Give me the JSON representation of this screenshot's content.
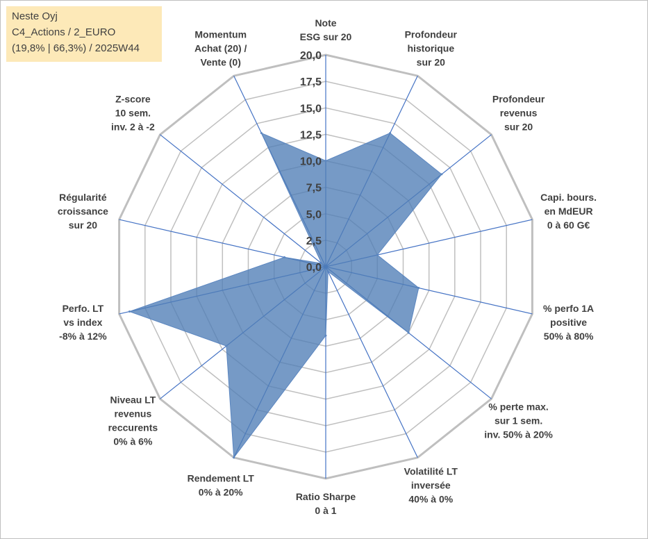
{
  "info": {
    "name": "Neste Oyj",
    "category": "C4_Actions / 2_EURO",
    "stats": "(19,8% | 66,3%) / 2025W44"
  },
  "colors": {
    "grid": "#bfbfbf",
    "axis": "#4472c4",
    "fill": "#4f7db6",
    "edge": "#5b86c0",
    "info_bg": "#fde9b8",
    "text": "#404040"
  },
  "chart_data": {
    "type": "radar",
    "rmin": 0,
    "rmax": 20,
    "tick_step": 2.5,
    "tick_labels": [
      "0,0",
      "2,5",
      "5,0",
      "7,5",
      "10,0",
      "12,5",
      "15,0",
      "17,5",
      "20,0"
    ],
    "axes": [
      {
        "lines": [
          "Note",
          "ESG sur 20"
        ],
        "value": 10.0
      },
      {
        "lines": [
          "Profondeur",
          "historique",
          "sur 20"
        ],
        "value": 14.0
      },
      {
        "lines": [
          "Profondeur",
          "revenus",
          "sur 20"
        ],
        "value": 14.0
      },
      {
        "lines": [
          "Capi. bours.",
          "en MdEUR",
          "0 à 60 G€"
        ],
        "value": 5.0
      },
      {
        "lines": [
          "% perfo 1A",
          "positive",
          "50% à 80%"
        ],
        "value": 9.0
      },
      {
        "lines": [
          "% perte max.",
          "sur 1 sem.",
          "inv. 50% à 20%"
        ],
        "value": 10.0
      },
      {
        "lines": [
          "Volatilité LT",
          "inversée",
          "40% à 0%"
        ],
        "value": 0.5
      },
      {
        "lines": [
          "Ratio Sharpe",
          "0 à 1"
        ],
        "value": 6.5
      },
      {
        "lines": [
          "Rendement LT",
          "0% à 20%"
        ],
        "value": 20.0
      },
      {
        "lines": [
          "Niveau LT",
          "revenus",
          "reccurents",
          "0% à 6%"
        ],
        "value": 12.0
      },
      {
        "lines": [
          "Perfo. LT",
          "vs index",
          "-8% à 12%"
        ],
        "value": 19.0
      },
      {
        "lines": [
          "Régularité",
          "croissance",
          "sur 20"
        ],
        "value": 4.0
      },
      {
        "lines": [
          "Z-score",
          "10 sem.",
          "inv. 2 à -2"
        ],
        "value": 0.5
      },
      {
        "lines": [
          "Momentum",
          "Achat (20) /",
          "Vente (0)"
        ],
        "value": 14.0
      }
    ]
  }
}
